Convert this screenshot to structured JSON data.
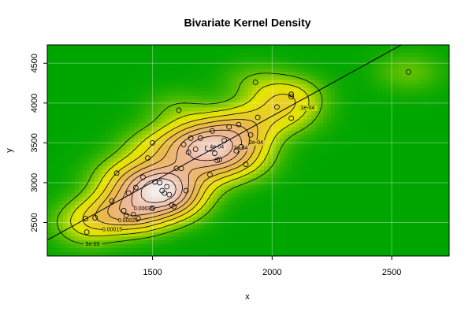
{
  "chart_data": {
    "type": "kde2d",
    "title": "Bivariate Kernel Density",
    "x_label": "x",
    "y_label": "y",
    "xlim": [
      1060,
      2740
    ],
    "ylim": [
      2080,
      4730
    ],
    "xticks": [
      1500,
      2000,
      2500
    ],
    "yticks": [
      2500,
      3000,
      3500,
      4000,
      4500
    ],
    "grid": true,
    "x": [
      1220,
      1260,
      1225,
      1330,
      1350,
      1380,
      1390,
      1400,
      1420,
      1430,
      1440,
      1460,
      1480,
      1500,
      1500,
      1510,
      1530,
      1540,
      1550,
      1560,
      1570,
      1580,
      1590,
      1600,
      1610,
      1620,
      1630,
      1640,
      1650,
      1660,
      1680,
      1700,
      1740,
      1750,
      1760,
      1770,
      1780,
      1800,
      1820,
      1850,
      1860,
      1870,
      1890,
      1910,
      1930,
      1940,
      2020,
      2080,
      2080,
      2080,
      2570
    ],
    "y": [
      2550,
      2560,
      2380,
      2770,
      3120,
      2650,
      2590,
      2870,
      2600,
      2940,
      2550,
      3070,
      3310,
      3500,
      2680,
      3010,
      3000,
      2900,
      2870,
      2950,
      2850,
      2720,
      2700,
      3180,
      3910,
      3180,
      3480,
      2900,
      3380,
      3560,
      3420,
      3560,
      3100,
      3650,
      3370,
      3280,
      3290,
      3530,
      3700,
      3400,
      3730,
      3450,
      3230,
      3600,
      4260,
      3820,
      3950,
      4080,
      4110,
      3810,
      4390
    ],
    "contour_levels": [
      {
        "value": 5e-05,
        "label": "5e-05"
      },
      {
        "value": 0.0001,
        "label": "1e-04"
      },
      {
        "value": 0.00015,
        "label": "0.00015"
      },
      {
        "value": 0.0002,
        "label": "2e-04"
      },
      {
        "value": 0.00025,
        "label": "0.00025"
      },
      {
        "value": 0.0003,
        "label": "3e-04"
      },
      {
        "value": 0.00035,
        "label": "0.00035"
      },
      {
        "value": 0.0004,
        "label": "4e-04"
      }
    ],
    "fit_line": {
      "x": [
        1060,
        2540
      ],
      "y": [
        2280,
        4730
      ]
    }
  }
}
